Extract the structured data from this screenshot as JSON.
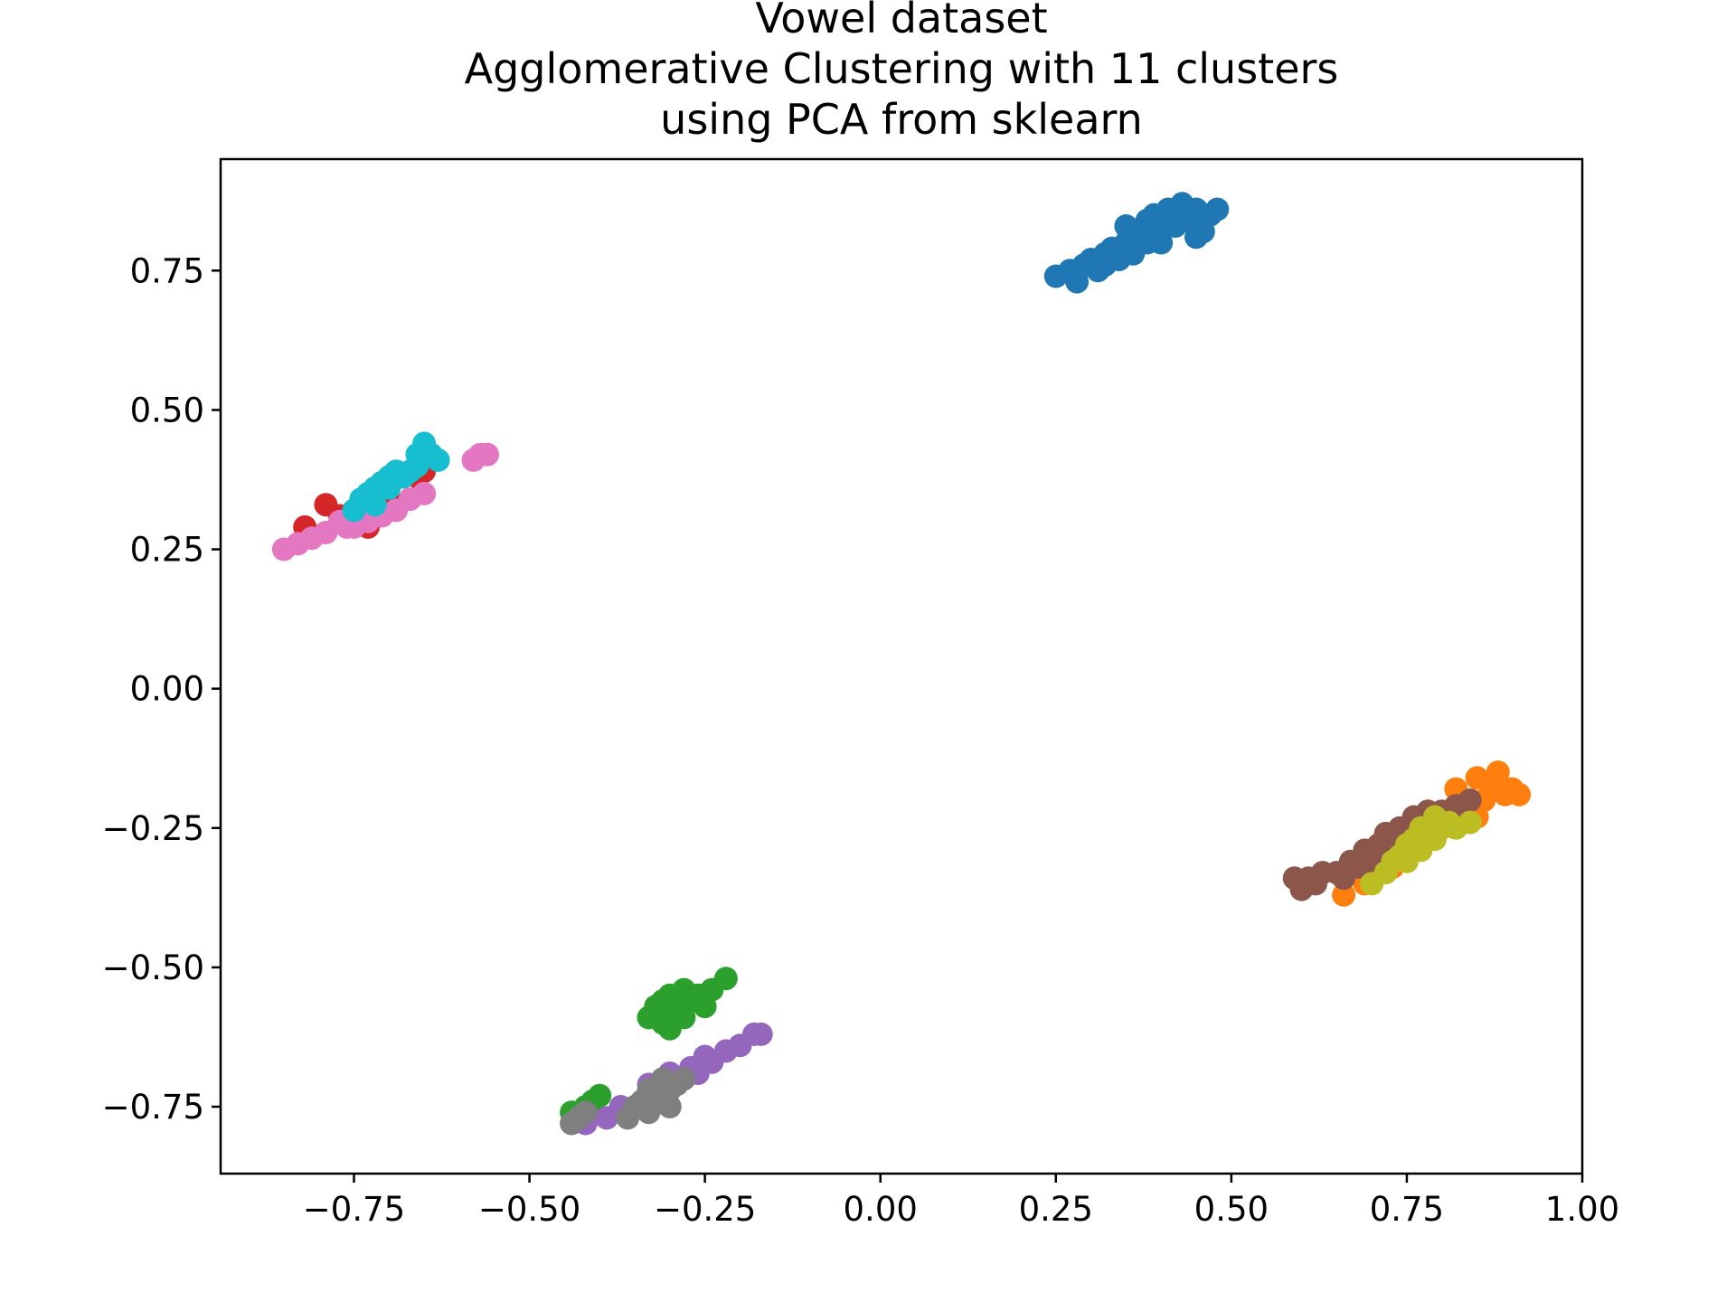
{
  "chart_data": {
    "type": "scatter",
    "title_lines": [
      "Vowel dataset",
      "Agglomerative Clustering with 11 clusters",
      "using PCA from sklearn"
    ],
    "xlabel": "",
    "ylabel": "",
    "xlim": [
      -0.94,
      1.0
    ],
    "ylim": [
      -0.87,
      0.95
    ],
    "x_ticks": [
      -0.75,
      -0.5,
      -0.25,
      0.0,
      0.25,
      0.5,
      0.75,
      1.0
    ],
    "x_tick_labels": [
      "−0.75",
      "−0.50",
      "−0.25",
      "0.00",
      "0.25",
      "0.50",
      "0.75",
      "1.00"
    ],
    "y_ticks": [
      -0.75,
      -0.5,
      -0.25,
      0.0,
      0.25,
      0.5,
      0.75
    ],
    "y_tick_labels": [
      "−0.75",
      "−0.50",
      "−0.25",
      "0.00",
      "0.25",
      "0.50",
      "0.75"
    ],
    "grid": false,
    "legend": "none",
    "series": [
      {
        "color": "#1f77b4",
        "points": [
          [
            0.25,
            0.74
          ],
          [
            0.27,
            0.75
          ],
          [
            0.28,
            0.73
          ],
          [
            0.29,
            0.76
          ],
          [
            0.3,
            0.77
          ],
          [
            0.31,
            0.75
          ],
          [
            0.32,
            0.78
          ],
          [
            0.33,
            0.79
          ],
          [
            0.34,
            0.77
          ],
          [
            0.35,
            0.8
          ],
          [
            0.35,
            0.83
          ],
          [
            0.36,
            0.78
          ],
          [
            0.37,
            0.82
          ],
          [
            0.38,
            0.84
          ],
          [
            0.38,
            0.8
          ],
          [
            0.39,
            0.85
          ],
          [
            0.4,
            0.82
          ],
          [
            0.41,
            0.86
          ],
          [
            0.42,
            0.83
          ],
          [
            0.43,
            0.87
          ],
          [
            0.44,
            0.84
          ],
          [
            0.45,
            0.86
          ],
          [
            0.46,
            0.82
          ],
          [
            0.47,
            0.85
          ],
          [
            0.48,
            0.86
          ],
          [
            0.36,
            0.81
          ],
          [
            0.4,
            0.8
          ],
          [
            0.42,
            0.85
          ],
          [
            0.45,
            0.81
          ],
          [
            0.32,
            0.76
          ]
        ]
      },
      {
        "color": "#ff7f0e",
        "points": [
          [
            0.66,
            -0.37
          ],
          [
            0.7,
            -0.33
          ],
          [
            0.74,
            -0.3
          ],
          [
            0.77,
            -0.27
          ],
          [
            0.79,
            -0.24
          ],
          [
            0.81,
            -0.22
          ],
          [
            0.82,
            -0.18
          ],
          [
            0.83,
            -0.21
          ],
          [
            0.85,
            -0.23
          ],
          [
            0.85,
            -0.16
          ],
          [
            0.86,
            -0.2
          ],
          [
            0.87,
            -0.17
          ],
          [
            0.88,
            -0.15
          ],
          [
            0.89,
            -0.19
          ],
          [
            0.9,
            -0.18
          ],
          [
            0.91,
            -0.19
          ],
          [
            0.84,
            -0.2
          ],
          [
            0.79,
            -0.26
          ],
          [
            0.73,
            -0.32
          ],
          [
            0.69,
            -0.35
          ]
        ]
      },
      {
        "color": "#2ca02c",
        "points": [
          [
            -0.44,
            -0.76
          ],
          [
            -0.43,
            -0.77
          ],
          [
            -0.42,
            -0.75
          ],
          [
            -0.41,
            -0.74
          ],
          [
            -0.4,
            -0.73
          ],
          [
            -0.33,
            -0.59
          ],
          [
            -0.32,
            -0.58
          ],
          [
            -0.31,
            -0.6
          ],
          [
            -0.31,
            -0.56
          ],
          [
            -0.3,
            -0.55
          ],
          [
            -0.29,
            -0.57
          ],
          [
            -0.28,
            -0.54
          ],
          [
            -0.27,
            -0.56
          ],
          [
            -0.26,
            -0.55
          ],
          [
            -0.25,
            -0.57
          ],
          [
            -0.24,
            -0.54
          ],
          [
            -0.22,
            -0.52
          ],
          [
            -0.3,
            -0.61
          ],
          [
            -0.28,
            -0.59
          ],
          [
            -0.32,
            -0.57
          ]
        ]
      },
      {
        "color": "#d62728",
        "points": [
          [
            -0.82,
            0.29
          ],
          [
            -0.79,
            0.33
          ],
          [
            -0.77,
            0.31
          ],
          [
            -0.75,
            0.32
          ],
          [
            -0.73,
            0.29
          ],
          [
            -0.72,
            0.36
          ],
          [
            -0.7,
            0.37
          ],
          [
            -0.68,
            0.38
          ],
          [
            -0.66,
            0.38
          ],
          [
            -0.65,
            0.39
          ],
          [
            -0.7,
            0.34
          ],
          [
            -0.74,
            0.33
          ]
        ]
      },
      {
        "color": "#9467bd",
        "points": [
          [
            -0.42,
            -0.78
          ],
          [
            -0.39,
            -0.77
          ],
          [
            -0.37,
            -0.75
          ],
          [
            -0.33,
            -0.71
          ],
          [
            -0.3,
            -0.69
          ],
          [
            -0.28,
            -0.7
          ],
          [
            -0.27,
            -0.68
          ],
          [
            -0.25,
            -0.66
          ],
          [
            -0.24,
            -0.67
          ],
          [
            -0.22,
            -0.65
          ],
          [
            -0.2,
            -0.64
          ],
          [
            -0.18,
            -0.62
          ],
          [
            -0.17,
            -0.62
          ],
          [
            -0.26,
            -0.69
          ],
          [
            -0.31,
            -0.72
          ]
        ]
      },
      {
        "color": "#8c564b",
        "points": [
          [
            0.59,
            -0.34
          ],
          [
            0.6,
            -0.36
          ],
          [
            0.62,
            -0.35
          ],
          [
            0.63,
            -0.33
          ],
          [
            0.65,
            -0.33
          ],
          [
            0.67,
            -0.31
          ],
          [
            0.69,
            -0.29
          ],
          [
            0.71,
            -0.28
          ],
          [
            0.72,
            -0.26
          ],
          [
            0.74,
            -0.25
          ],
          [
            0.76,
            -0.23
          ],
          [
            0.78,
            -0.22
          ],
          [
            0.8,
            -0.22
          ],
          [
            0.82,
            -0.21
          ],
          [
            0.84,
            -0.2
          ],
          [
            0.66,
            -0.34
          ],
          [
            0.7,
            -0.31
          ],
          [
            0.73,
            -0.28
          ],
          [
            0.61,
            -0.34
          ],
          [
            0.68,
            -0.32
          ]
        ]
      },
      {
        "color": "#e377c2",
        "points": [
          [
            -0.85,
            0.25
          ],
          [
            -0.83,
            0.26
          ],
          [
            -0.81,
            0.27
          ],
          [
            -0.79,
            0.28
          ],
          [
            -0.77,
            0.3
          ],
          [
            -0.75,
            0.29
          ],
          [
            -0.73,
            0.3
          ],
          [
            -0.71,
            0.31
          ],
          [
            -0.69,
            0.32
          ],
          [
            -0.67,
            0.34
          ],
          [
            -0.65,
            0.35
          ],
          [
            -0.58,
            0.41
          ],
          [
            -0.56,
            0.42
          ],
          [
            -0.57,
            0.42
          ],
          [
            -0.76,
            0.29
          ],
          [
            -0.72,
            0.32
          ]
        ]
      },
      {
        "color": "#7f7f7f",
        "points": [
          [
            -0.44,
            -0.78
          ],
          [
            -0.43,
            -0.77
          ],
          [
            -0.42,
            -0.76
          ],
          [
            -0.36,
            -0.77
          ],
          [
            -0.35,
            -0.75
          ],
          [
            -0.34,
            -0.74
          ],
          [
            -0.33,
            -0.76
          ],
          [
            -0.32,
            -0.73
          ],
          [
            -0.31,
            -0.74
          ],
          [
            -0.3,
            -0.72
          ],
          [
            -0.29,
            -0.71
          ],
          [
            -0.28,
            -0.7
          ],
          [
            -0.3,
            -0.75
          ],
          [
            -0.33,
            -0.72
          ],
          [
            -0.31,
            -0.7
          ]
        ]
      },
      {
        "color": "#bcbd22",
        "points": [
          [
            0.7,
            -0.35
          ],
          [
            0.72,
            -0.33
          ],
          [
            0.73,
            -0.31
          ],
          [
            0.74,
            -0.3
          ],
          [
            0.75,
            -0.28
          ],
          [
            0.76,
            -0.27
          ],
          [
            0.77,
            -0.25
          ],
          [
            0.78,
            -0.26
          ],
          [
            0.79,
            -0.27
          ],
          [
            0.8,
            -0.25
          ],
          [
            0.81,
            -0.24
          ],
          [
            0.82,
            -0.25
          ],
          [
            0.84,
            -0.24
          ],
          [
            0.75,
            -0.31
          ],
          [
            0.77,
            -0.29
          ],
          [
            0.79,
            -0.23
          ]
        ]
      },
      {
        "color": "#17becf",
        "points": [
          [
            -0.75,
            0.32
          ],
          [
            -0.74,
            0.34
          ],
          [
            -0.73,
            0.35
          ],
          [
            -0.72,
            0.36
          ],
          [
            -0.71,
            0.37
          ],
          [
            -0.7,
            0.38
          ],
          [
            -0.69,
            0.39
          ],
          [
            -0.68,
            0.38
          ],
          [
            -0.67,
            0.39
          ],
          [
            -0.66,
            0.4
          ],
          [
            -0.66,
            0.42
          ],
          [
            -0.65,
            0.44
          ],
          [
            -0.64,
            0.42
          ],
          [
            -0.63,
            0.41
          ],
          [
            -0.72,
            0.33
          ],
          [
            -0.7,
            0.36
          ]
        ]
      }
    ]
  }
}
